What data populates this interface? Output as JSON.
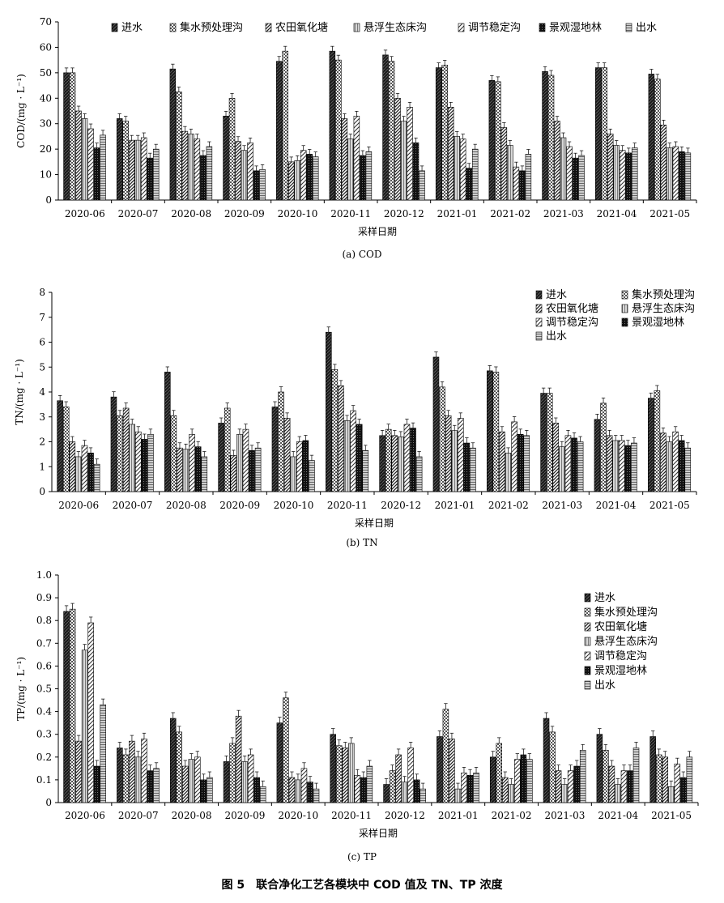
{
  "figure_caption": "图 5　联合净化工艺各模块中 COD 值及 TN、TP 浓度",
  "legend_names": [
    "进水",
    "集水预处理沟",
    "农田氧化塘",
    "悬浮生态床沟",
    "调节稳定沟",
    "景观湿地林",
    "出水"
  ],
  "chart_data": [
    {
      "type": "bar",
      "panel_caption": "(a) COD",
      "xlabel": "采样日期",
      "ylabel": "COD/(mg · L⁻¹)",
      "ylim": [
        0,
        70
      ],
      "yticks": [
        "0",
        "10",
        "20",
        "30",
        "40",
        "50",
        "60",
        "70"
      ],
      "categories": [
        "2020-06",
        "2020-07",
        "2020-08",
        "2020-09",
        "2020-10",
        "2020-11",
        "2020-12",
        "2021-01",
        "2021-02",
        "2021-03",
        "2021-04",
        "2021-05"
      ],
      "legend_position": "top",
      "series": [
        {
          "name": "进水",
          "values": [
            50,
            32,
            51.5,
            33,
            54.5,
            58.5,
            57,
            52,
            47,
            50.5,
            52,
            49.5
          ]
        },
        {
          "name": "集水预处理沟",
          "values": [
            50,
            31,
            42.5,
            40,
            58.5,
            55,
            54.5,
            53,
            46.5,
            49,
            52,
            47.5
          ]
        },
        {
          "name": "农田氧化塘",
          "values": [
            35,
            23.5,
            27,
            23,
            15,
            32,
            40,
            36.5,
            28.5,
            31,
            26,
            29.5
          ]
        },
        {
          "name": "悬浮生态床沟",
          "values": [
            32,
            23.5,
            26,
            19.5,
            15.5,
            24,
            31,
            25,
            21.5,
            24.5,
            21.5,
            20.5
          ]
        },
        {
          "name": "调节稳定沟",
          "values": [
            28,
            24.5,
            24,
            22.5,
            19.5,
            33,
            36.5,
            24,
            13,
            21,
            19.5,
            21
          ]
        },
        {
          "name": "景观湿地林",
          "values": [
            20.5,
            16.5,
            17.5,
            11.5,
            18,
            17.5,
            22.5,
            12.5,
            11.5,
            16.5,
            18.5,
            19
          ]
        },
        {
          "name": "出水",
          "values": [
            25.5,
            20,
            21,
            12,
            17,
            19,
            11.5,
            20,
            18,
            17.5,
            20.5,
            18.5
          ]
        }
      ]
    },
    {
      "type": "bar",
      "panel_caption": "(b) TN",
      "xlabel": "采样日期",
      "ylabel": "TN/(mg · L⁻¹)",
      "ylim": [
        0,
        8
      ],
      "yticks": [
        "0",
        "1",
        "2",
        "3",
        "4",
        "5",
        "6",
        "7",
        "8"
      ],
      "categories": [
        "2020-06",
        "2020-07",
        "2020-08",
        "2020-09",
        "2020-10",
        "2020-11",
        "2020-12",
        "2021-01",
        "2021-02",
        "2021-03",
        "2021-04",
        "2021-05"
      ],
      "legend_position": "top-right",
      "series": [
        {
          "name": "进水",
          "values": [
            3.65,
            3.8,
            4.8,
            2.75,
            3.4,
            6.4,
            2.25,
            5.4,
            4.85,
            3.95,
            2.9,
            3.75
          ]
        },
        {
          "name": "集水预处理沟",
          "values": [
            3.4,
            3.05,
            3.05,
            3.35,
            4.0,
            4.9,
            2.5,
            4.2,
            4.8,
            3.95,
            3.55,
            4.05
          ]
        },
        {
          "name": "农田氧化塘",
          "values": [
            2.0,
            3.35,
            1.75,
            1.45,
            2.95,
            4.25,
            2.25,
            3.05,
            2.4,
            2.75,
            2.25,
            2.35
          ]
        },
        {
          "name": "悬浮生态床沟",
          "values": [
            1.4,
            2.7,
            1.7,
            2.3,
            1.4,
            2.85,
            2.2,
            2.45,
            1.55,
            1.8,
            2.05,
            2.0
          ]
        },
        {
          "name": "调节稳定沟",
          "values": [
            1.85,
            2.4,
            2.3,
            2.5,
            2.0,
            3.25,
            2.7,
            2.95,
            2.8,
            2.25,
            2.05,
            2.4
          ]
        },
        {
          "name": "景观湿地林",
          "values": [
            1.55,
            2.1,
            1.8,
            1.65,
            2.05,
            2.7,
            2.55,
            1.95,
            2.3,
            2.15,
            1.85,
            2.05
          ]
        },
        {
          "name": "出水",
          "values": [
            1.1,
            2.3,
            1.4,
            1.75,
            1.25,
            1.65,
            1.4,
            1.75,
            2.25,
            2.0,
            1.95,
            1.75
          ]
        }
      ]
    },
    {
      "type": "bar",
      "panel_caption": "(c) TP",
      "xlabel": "采样日期",
      "ylabel": "TP/(mg · L⁻¹)",
      "ylim": [
        0,
        1.0
      ],
      "yticks": [
        "0",
        "0.1",
        "0.2",
        "0.3",
        "0.4",
        "0.5",
        "0.6",
        "0.7",
        "0.8",
        "0.9",
        "1.0"
      ],
      "categories": [
        "2020-06",
        "2020-07",
        "2020-08",
        "2020-09",
        "2020-10",
        "2020-11",
        "2020-12",
        "2021-01",
        "2021-02",
        "2021-03",
        "2021-04",
        "2021-05"
      ],
      "legend_position": "right",
      "series": [
        {
          "name": "进水",
          "values": [
            0.84,
            0.24,
            0.37,
            0.18,
            0.35,
            0.3,
            0.08,
            0.29,
            0.2,
            0.37,
            0.3,
            0.29
          ]
        },
        {
          "name": "集水预处理沟",
          "values": [
            0.85,
            0.21,
            0.31,
            0.26,
            0.46,
            0.25,
            0.14,
            0.41,
            0.26,
            0.31,
            0.23,
            0.21
          ]
        },
        {
          "name": "农田氧化塘",
          "values": [
            0.27,
            0.27,
            0.16,
            0.38,
            0.11,
            0.24,
            0.21,
            0.28,
            0.11,
            0.14,
            0.16,
            0.2
          ]
        },
        {
          "name": "悬浮生态床沟",
          "values": [
            0.67,
            0.2,
            0.19,
            0.18,
            0.1,
            0.26,
            0.09,
            0.06,
            0.08,
            0.08,
            0.08,
            0.07
          ]
        },
        {
          "name": "调节稳定沟",
          "values": [
            0.79,
            0.28,
            0.2,
            0.21,
            0.15,
            0.12,
            0.24,
            0.13,
            0.19,
            0.14,
            0.14,
            0.17
          ]
        },
        {
          "name": "景观湿地林",
          "values": [
            0.16,
            0.14,
            0.1,
            0.11,
            0.09,
            0.11,
            0.1,
            0.12,
            0.21,
            0.16,
            0.14,
            0.11
          ]
        },
        {
          "name": "出水",
          "values": [
            0.43,
            0.15,
            0.11,
            0.07,
            0.06,
            0.16,
            0.06,
            0.13,
            0.19,
            0.23,
            0.24,
            0.2
          ]
        }
      ]
    }
  ]
}
